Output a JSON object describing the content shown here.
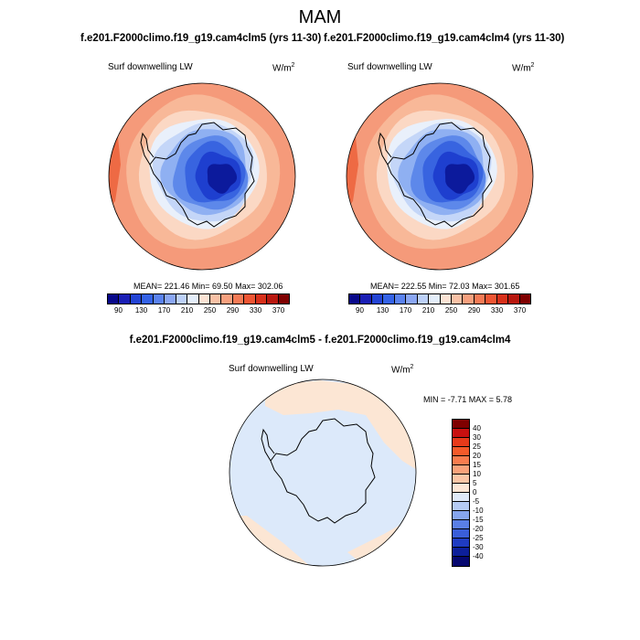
{
  "header": {
    "season": "MAM",
    "case1_title": "f.e201.F2000climo.f19_g19.cam4clm5 (yrs 11-30)",
    "case2_title": "f.e201.F2000climo.f19_g19.cam4clm4 (yrs 11-30)",
    "diff_title": "f.e201.F2000climo.f19_g19.cam4clm5 - f.e201.F2000climo.f19_g19.cam4clm4"
  },
  "panels": [
    {
      "variable": "Surf downwelling LW",
      "units_base": "W/m",
      "units_exp": "2",
      "stats": "MEAN= 221.46  Min=  69.50  Max= 302.06",
      "mean": 221.46,
      "min": 69.5,
      "max": 302.06
    },
    {
      "variable": "Surf downwelling LW",
      "units_base": "W/m",
      "units_exp": "2",
      "stats": "MEAN= 222.55  Min=  72.03  Max= 301.65",
      "mean": 222.55,
      "min": 72.03,
      "max": 301.65
    }
  ],
  "diff_panel": {
    "variable": "Surf downwelling LW",
    "units_base": "W/m",
    "units_exp": "2",
    "stats": "MIN =  -7.71 MAX =   5.78",
    "min": -7.71,
    "max": 5.78
  },
  "colorbar_abs": {
    "tick_labels": [
      "90",
      "130",
      "170",
      "210",
      "250",
      "290",
      "330",
      "370"
    ],
    "colors": [
      "#08088a",
      "#1a1fb5",
      "#2344d4",
      "#3462e6",
      "#5a82ee",
      "#8aa6f3",
      "#bcd0f8",
      "#e4eefb",
      "#fbe2d4",
      "#f9c1a6",
      "#f7a07e",
      "#f47a55",
      "#ee5533",
      "#d7301a",
      "#b8170e",
      "#7f0000"
    ]
  },
  "colorbar_diff": {
    "tick_labels": [
      "40",
      "30",
      "25",
      "20",
      "15",
      "10",
      "5",
      "0",
      "-5",
      "-10",
      "-15",
      "-20",
      "-25",
      "-30",
      "-40"
    ],
    "colors": [
      "#7f0000",
      "#c81010",
      "#e83a1a",
      "#f45a2a",
      "#f87c4e",
      "#f9a27a",
      "#fbc6a6",
      "#fde7d6",
      "#dfeaf9",
      "#b5cbf4",
      "#86a5ee",
      "#5a7fe6",
      "#3a5ed9",
      "#1f3cc2",
      "#0d1f9a",
      "#060870"
    ]
  },
  "map_colors": {
    "ring_outer": "#f59a7a",
    "ring_mid": "#f8b898",
    "ring_inner": "#fbd8c4",
    "ring_pale": "#e9f0fb",
    "ice_1": "#c4d6f8",
    "ice_2": "#8fb0f2",
    "ice_3": "#5d88ea",
    "ice_4": "#3864e0",
    "ice_5": "#1e3fcf",
    "ice_6": "#0c1a9c",
    "diff_bg": "#dce9fa",
    "diff_pos": "#fce6d4"
  }
}
